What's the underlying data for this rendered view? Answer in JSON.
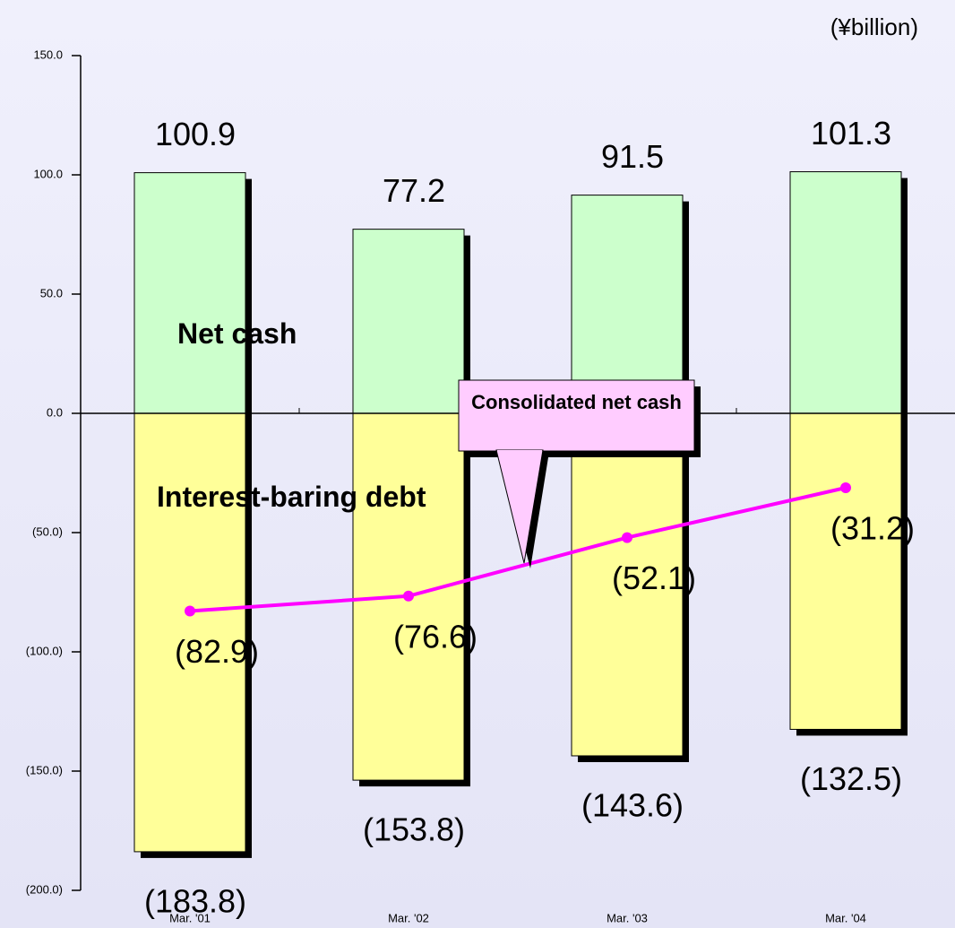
{
  "chart_data": {
    "type": "bar_line",
    "unit_label": "(¥billion)",
    "categories": [
      "Mar. '01",
      "Mar. '02",
      "Mar. '03",
      "Mar. '04"
    ],
    "series": [
      {
        "name": "Net cash",
        "color": "#ccffcc",
        "values": [
          100.9,
          77.2,
          91.5,
          101.3
        ]
      },
      {
        "name": "Interest-baring debt",
        "color": "#ffff99",
        "values": [
          -183.8,
          -153.8,
          -143.6,
          -132.5
        ],
        "value_labels": [
          "(183.8)",
          "(153.8)",
          "(143.6)",
          "(132.5)"
        ]
      },
      {
        "name": "Consolidated net cash",
        "color": "#ff00ff",
        "kind": "line",
        "values": [
          -82.9,
          -76.6,
          -52.1,
          -31.2
        ],
        "value_labels": [
          "(82.9)",
          "(76.6)",
          "(52.1)",
          "(31.2)"
        ]
      }
    ],
    "ylim": [
      -200,
      150
    ],
    "yticks": [
      {
        "value": 150,
        "label": "150.0"
      },
      {
        "value": 100,
        "label": "100.0"
      },
      {
        "value": 50,
        "label": "50.0"
      },
      {
        "value": 0,
        "label": "0.0"
      },
      {
        "value": -50,
        "label": "(50.0)"
      },
      {
        "value": -100,
        "label": "(100.0)"
      },
      {
        "value": -150,
        "label": "(150.0)"
      },
      {
        "value": -200,
        "label": "(200.0)"
      }
    ]
  }
}
